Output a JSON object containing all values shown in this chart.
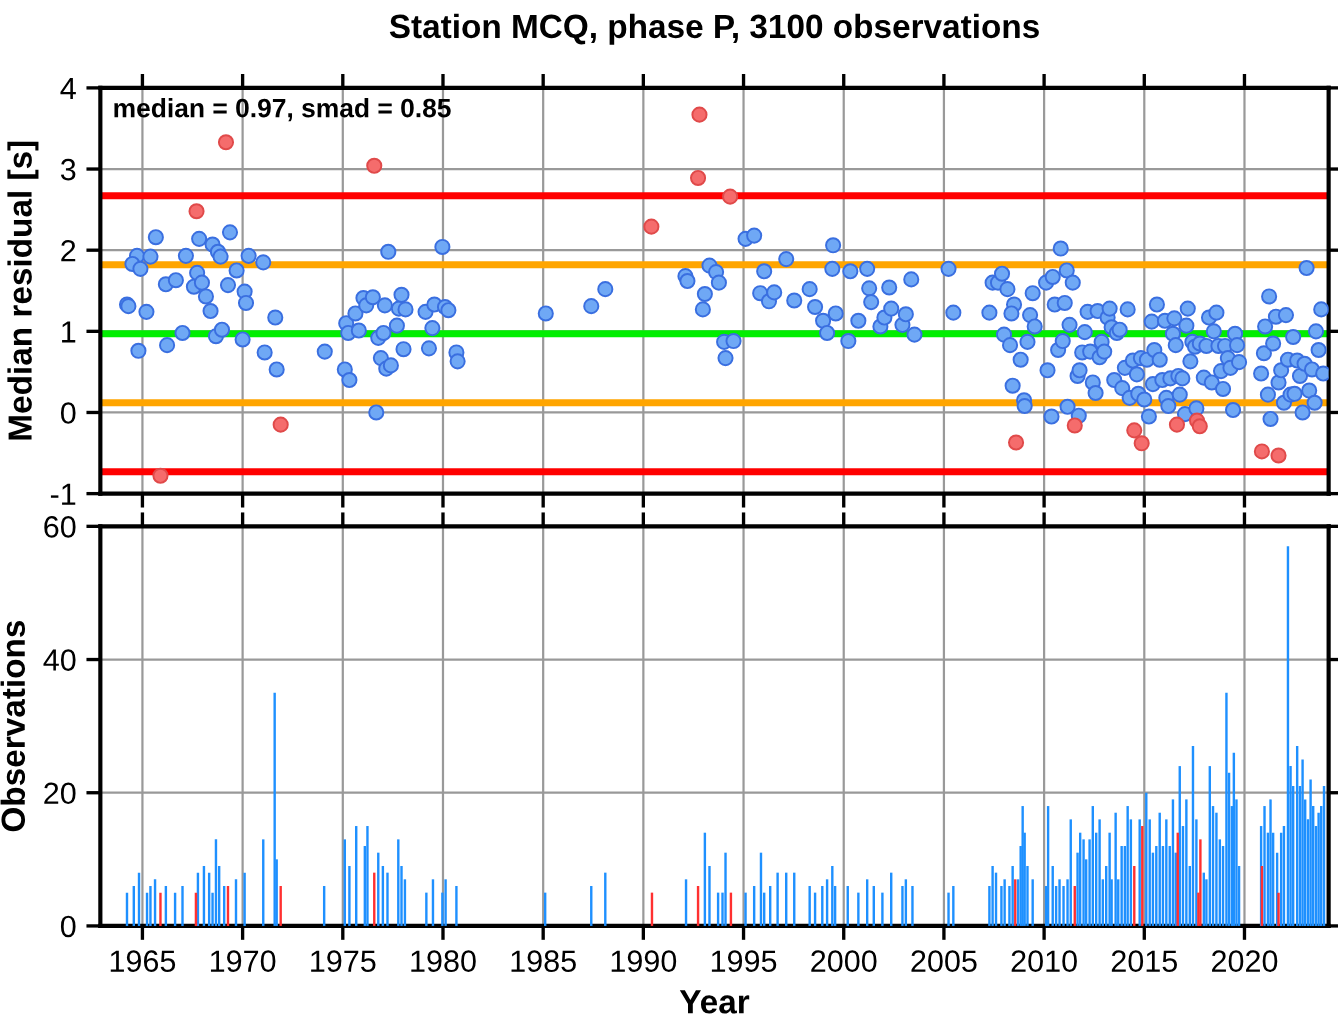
{
  "chart_data": [
    {
      "type": "scatter",
      "title": "Station MCQ, phase P, 3100 observations",
      "ylabel": "Median residual [s]",
      "xlim": [
        1962.9,
        2024.2
      ],
      "xticks": [
        1965,
        1970,
        1975,
        1980,
        1985,
        1990,
        1995,
        2000,
        2005,
        2010,
        2015,
        2020
      ],
      "tick_labels": "y",
      "ylim": [
        -1,
        4
      ],
      "yticks": [
        -1,
        0,
        1,
        2,
        3,
        4
      ],
      "grid": true,
      "marker": "circle",
      "annotations": [
        "median = 0.97, smad = 0.85"
      ],
      "ref_lines": [
        {
          "axis": "y",
          "value": 2.67,
          "color": "#ff0000"
        },
        {
          "axis": "y",
          "value": 1.82,
          "color": "#ffa500"
        },
        {
          "axis": "y",
          "value": 0.97,
          "color": "#00ee00"
        },
        {
          "axis": "y",
          "value": 0.12,
          "color": "#ffa500"
        },
        {
          "axis": "y",
          "value": -0.73,
          "color": "#ff0000"
        }
      ],
      "series": [
        {
          "color": "#6fa8f5",
          "x": [
            1964.23,
            1964.3,
            1964.73,
            1964.5,
            1964.9,
            1964.8,
            1965.2,
            1965.4,
            1965.67,
            1966.17,
            1966.23,
            1966.67,
            1967.0,
            1967.17,
            1967.57,
            1967.73,
            1967.83,
            1967.97,
            1968.17,
            1968.4,
            1968.5,
            1968.67,
            1968.77,
            1968.9,
            1968.97,
            1969.27,
            1969.37,
            1969.7,
            1970.0,
            1970.1,
            1970.17,
            1970.3,
            1971.03,
            1971.1,
            1971.63,
            1971.7,
            1974.1,
            1975.1,
            1975.17,
            1975.27,
            1975.33,
            1975.63,
            1975.8,
            1976.03,
            1976.17,
            1976.5,
            1976.67,
            1976.77,
            1976.9,
            1977.03,
            1977.1,
            1977.17,
            1977.27,
            1977.4,
            1977.7,
            1977.8,
            1977.93,
            1978.03,
            1978.13,
            1979.13,
            1979.3,
            1979.47,
            1979.57,
            1979.97,
            1980.1,
            1980.27,
            1980.67,
            1980.73,
            1985.13,
            1987.4,
            1988.1,
            1992.1,
            1992.2,
            1992.97,
            1993.07,
            1993.3,
            1993.63,
            1993.77,
            1994.03,
            1994.1,
            1994.5,
            1995.1,
            1995.53,
            1996.03,
            1995.83,
            1996.27,
            1996.53,
            1997.13,
            1997.53,
            1998.3,
            1998.57,
            1998.97,
            1999.17,
            1999.47,
            1999.43,
            1999.6,
            2000.23,
            2000.33,
            2000.73,
            2001.17,
            2001.27,
            2001.37,
            2001.83,
            2002.03,
            2002.27,
            2002.37,
            2002.93,
            2003.1,
            2003.37,
            2003.53,
            2005.23,
            2005.47,
            2007.27,
            2007.43,
            2007.7,
            2007.9,
            2008.0,
            2008.17,
            2008.3,
            2008.43,
            2008.5,
            2008.37,
            2008.83,
            2009.0,
            2009.03,
            2009.17,
            2009.3,
            2009.43,
            2009.53,
            2010.1,
            2010.17,
            2010.37,
            2010.43,
            2010.53,
            2010.7,
            2010.83,
            2010.93,
            2011.03,
            2011.13,
            2011.17,
            2011.27,
            2011.43,
            2011.67,
            2011.73,
            2011.77,
            2011.9,
            2012.03,
            2012.17,
            2012.3,
            2012.43,
            2012.57,
            2012.67,
            2012.77,
            2012.87,
            2013.0,
            2013.17,
            2013.27,
            2013.37,
            2013.5,
            2013.63,
            2013.77,
            2013.9,
            2014.03,
            2014.17,
            2014.27,
            2014.43,
            2014.63,
            2014.7,
            2014.83,
            2015.0,
            2015.13,
            2015.23,
            2015.37,
            2015.43,
            2015.5,
            2015.63,
            2015.77,
            2015.9,
            2016.03,
            2016.1,
            2016.2,
            2016.3,
            2016.43,
            2016.5,
            2016.57,
            2016.7,
            2016.77,
            2016.9,
            2017.03,
            2017.1,
            2017.17,
            2017.3,
            2017.4,
            2017.53,
            2017.6,
            2017.77,
            2017.97,
            2018.1,
            2018.23,
            2018.37,
            2018.47,
            2018.6,
            2018.7,
            2018.83,
            2018.93,
            2019.03,
            2019.17,
            2019.3,
            2019.43,
            2019.53,
            2019.63,
            2019.73,
            2020.83,
            2020.97,
            2021.03,
            2021.17,
            2021.23,
            2021.3,
            2021.43,
            2021.57,
            2021.7,
            2021.83,
            2021.97,
            2022.07,
            2022.17,
            2022.3,
            2022.43,
            2022.5,
            2022.63,
            2022.77,
            2022.9,
            2023.0,
            2023.1,
            2023.23,
            2023.37,
            2023.5,
            2023.57,
            2023.7,
            2023.83,
            2023.93
          ],
          "values": [
            1.33,
            1.31,
            1.93,
            1.83,
            1.77,
            0.76,
            1.24,
            1.92,
            2.16,
            1.58,
            0.83,
            1.63,
            0.98,
            1.93,
            1.55,
            1.72,
            2.14,
            1.6,
            1.43,
            1.25,
            2.07,
            0.94,
            1.98,
            1.92,
            1.02,
            1.57,
            2.22,
            1.75,
            0.9,
            1.49,
            1.35,
            1.93,
            1.85,
            0.74,
            1.17,
            0.53,
            0.75,
            0.53,
            1.1,
            0.98,
            0.4,
            1.22,
            1.01,
            1.41,
            1.32,
            1.42,
            0.0,
            0.92,
            0.67,
            0.98,
            1.32,
            0.54,
            1.98,
            0.58,
            1.07,
            1.28,
            1.45,
            0.78,
            1.27,
            1.24,
            0.79,
            1.04,
            1.33,
            2.04,
            1.3,
            1.26,
            0.74,
            0.63,
            1.22,
            1.31,
            1.52,
            1.68,
            1.62,
            1.27,
            1.46,
            1.81,
            1.73,
            1.6,
            0.87,
            0.67,
            0.88,
            2.14,
            2.18,
            1.74,
            1.47,
            1.37,
            1.48,
            1.89,
            1.38,
            1.52,
            1.3,
            1.13,
            0.98,
            2.06,
            1.77,
            1.22,
            0.88,
            1.74,
            1.13,
            1.77,
            1.53,
            1.36,
            1.06,
            1.17,
            1.54,
            1.28,
            1.08,
            1.21,
            1.64,
            0.96,
            1.77,
            1.23,
            1.23,
            1.6,
            1.6,
            1.71,
            0.96,
            1.52,
            0.83,
            0.33,
            1.33,
            1.22,
            0.65,
            0.15,
            0.08,
            0.87,
            1.2,
            1.47,
            1.06,
            1.6,
            0.52,
            -0.05,
            1.67,
            1.33,
            0.77,
            2.02,
            0.88,
            1.35,
            1.75,
            0.07,
            1.08,
            1.6,
            0.45,
            -0.04,
            0.52,
            0.74,
            0.99,
            1.24,
            0.75,
            0.37,
            0.24,
            1.25,
            0.68,
            0.87,
            0.75,
            1.17,
            1.28,
            1.05,
            0.4,
            0.98,
            1.02,
            0.3,
            0.55,
            1.27,
            0.18,
            0.64,
            0.47,
            0.23,
            0.67,
            0.16,
            0.65,
            -0.05,
            1.12,
            0.35,
            0.77,
            1.33,
            0.65,
            0.4,
            1.13,
            0.18,
            0.08,
            0.42,
            0.97,
            1.16,
            0.83,
            0.45,
            0.22,
            0.42,
            -0.02,
            1.07,
            1.28,
            0.63,
            0.87,
            0.81,
            0.05,
            0.85,
            0.43,
            0.82,
            1.17,
            0.37,
            1.0,
            1.23,
            0.82,
            0.51,
            0.29,
            0.82,
            0.67,
            0.55,
            0.03,
            0.97,
            0.83,
            0.62,
            0.48,
            0.73,
            1.06,
            0.22,
            1.43,
            -0.08,
            0.85,
            1.18,
            0.37,
            0.52,
            0.12,
            1.2,
            0.65,
            0.22,
            0.93,
            0.23,
            0.64,
            0.45,
            0.0,
            0.6,
            1.78,
            0.27,
            0.53,
            0.12,
            1.0,
            0.77,
            1.27,
            0.48
          ]
        },
        {
          "color": "#f56c6c",
          "x": [
            1965.9,
            1967.7,
            1969.17,
            1971.9,
            1976.57,
            1990.4,
            1992.73,
            1992.8,
            1994.33,
            2008.6,
            2011.53,
            2014.5,
            2014.87,
            2016.63,
            2017.63,
            2017.77,
            2020.87,
            2021.7
          ],
          "values": [
            -0.78,
            2.48,
            3.33,
            -0.15,
            3.04,
            2.29,
            2.89,
            3.67,
            2.66,
            -0.37,
            -0.16,
            -0.22,
            -0.38,
            -0.15,
            -0.1,
            -0.17,
            -0.48,
            -0.53
          ]
        }
      ]
    },
    {
      "type": "bar",
      "xlabel": "Year",
      "ylabel": "Observations",
      "xlim": [
        1962.9,
        2024.2
      ],
      "xticks": [
        1965,
        1970,
        1975,
        1980,
        1985,
        1990,
        1995,
        2000,
        2005,
        2010,
        2015,
        2020
      ],
      "ylim": [
        0,
        60
      ],
      "yticks": [
        0,
        20,
        40,
        60
      ],
      "grid": true,
      "series": [
        {
          "color": "#1e90ff",
          "x": [
            1964.23,
            1964.57,
            1964.83,
            1965.23,
            1965.4,
            1965.63,
            1966.17,
            1966.63,
            1967.0,
            1967.77,
            1968.07,
            1968.33,
            1968.5,
            1968.67,
            1968.83,
            1969.08,
            1969.67,
            1970.1,
            1971.03,
            1971.6,
            1971.7,
            1974.07,
            1975.1,
            1975.33,
            1975.67,
            1976.1,
            1976.23,
            1976.77,
            1977.0,
            1977.23,
            1977.77,
            1977.93,
            1978.1,
            1979.17,
            1979.5,
            1979.97,
            1980.13,
            1980.67,
            1985.1,
            1987.4,
            1988.1,
            1992.13,
            1993.07,
            1993.3,
            1993.73,
            1993.95,
            1994.1,
            1995.1,
            1995.53,
            1995.87,
            1996.03,
            1996.33,
            1996.7,
            1997.13,
            1997.53,
            1998.3,
            1998.57,
            1998.93,
            1999.17,
            1999.43,
            1999.57,
            2000.2,
            2000.73,
            2001.17,
            2001.5,
            2001.93,
            2002.37,
            2002.93,
            2003.1,
            2003.43,
            2005.23,
            2005.47,
            2007.27,
            2007.43,
            2007.6,
            2007.87,
            2008.03,
            2008.27,
            2008.43,
            2008.7,
            2008.83,
            2008.93,
            2009.03,
            2009.17,
            2009.43,
            2010.1,
            2010.2,
            2010.43,
            2010.6,
            2010.77,
            2010.97,
            2011.17,
            2011.33,
            2011.67,
            2011.8,
            2011.97,
            2012.1,
            2012.27,
            2012.43,
            2012.6,
            2012.77,
            2012.93,
            2013.1,
            2013.27,
            2013.37,
            2013.57,
            2013.7,
            2013.87,
            2014.03,
            2014.17,
            2014.33,
            2014.77,
            2015.1,
            2015.27,
            2015.43,
            2015.6,
            2015.77,
            2015.93,
            2016.1,
            2016.27,
            2016.43,
            2016.57,
            2016.77,
            2016.93,
            2017.1,
            2017.27,
            2017.43,
            2017.6,
            2017.97,
            2018.1,
            2018.27,
            2018.43,
            2018.6,
            2018.77,
            2018.93,
            2019.1,
            2019.23,
            2019.37,
            2019.47,
            2019.6,
            2019.73,
            2020.83,
            2021.0,
            2021.17,
            2021.3,
            2021.43,
            2021.63,
            2021.83,
            2021.97,
            2022.17,
            2022.3,
            2022.43,
            2022.63,
            2022.77,
            2022.9,
            2023.03,
            2023.17,
            2023.3,
            2023.43,
            2023.57,
            2023.7,
            2023.83,
            2023.97
          ],
          "values": [
            5,
            6,
            8,
            5,
            6,
            7,
            6,
            5,
            6,
            8,
            9,
            8,
            5,
            13,
            9,
            6,
            7,
            8,
            13,
            35,
            10,
            6,
            13,
            9,
            15,
            12,
            15,
            11,
            9,
            8,
            13,
            9,
            7,
            5,
            7,
            5,
            7,
            6,
            5,
            6,
            8,
            7,
            14,
            9,
            5,
            5,
            11,
            5,
            6,
            11,
            5,
            6,
            8,
            8,
            8,
            6,
            5,
            6,
            7,
            9,
            6,
            6,
            5,
            7,
            6,
            5,
            8,
            6,
            7,
            6,
            5,
            6,
            6,
            9,
            8,
            6,
            7,
            6,
            9,
            7,
            12,
            18,
            14,
            9,
            7,
            6,
            18,
            9,
            6,
            7,
            6,
            7,
            16,
            11,
            14,
            13,
            10,
            13,
            18,
            14,
            16,
            7,
            9,
            14,
            7,
            17,
            7,
            12,
            12,
            18,
            16,
            16,
            20,
            16,
            11,
            12,
            17,
            12,
            16,
            12,
            19,
            11,
            24,
            15,
            19,
            9,
            27,
            16,
            8,
            7,
            24,
            18,
            17,
            13,
            12,
            35,
            23,
            18,
            26,
            19,
            9,
            15,
            18,
            14,
            19,
            14,
            11,
            14,
            15,
            57,
            24,
            21,
            27,
            21,
            25,
            19,
            16,
            22,
            18,
            15,
            17,
            18,
            21
          ]
        },
        {
          "color": "#ff3030",
          "x": [
            1965.9,
            1967.67,
            1969.27,
            1971.9,
            1976.57,
            1990.43,
            1992.73,
            1994.37,
            2008.56,
            2011.53,
            2014.5,
            2014.9,
            2016.67,
            2017.7,
            2017.8,
            2020.87,
            2021.7
          ],
          "values": [
            5,
            5,
            6,
            6,
            8,
            5,
            6,
            5,
            7,
            6,
            9,
            15,
            14,
            5,
            13,
            9,
            5
          ]
        }
      ]
    }
  ]
}
